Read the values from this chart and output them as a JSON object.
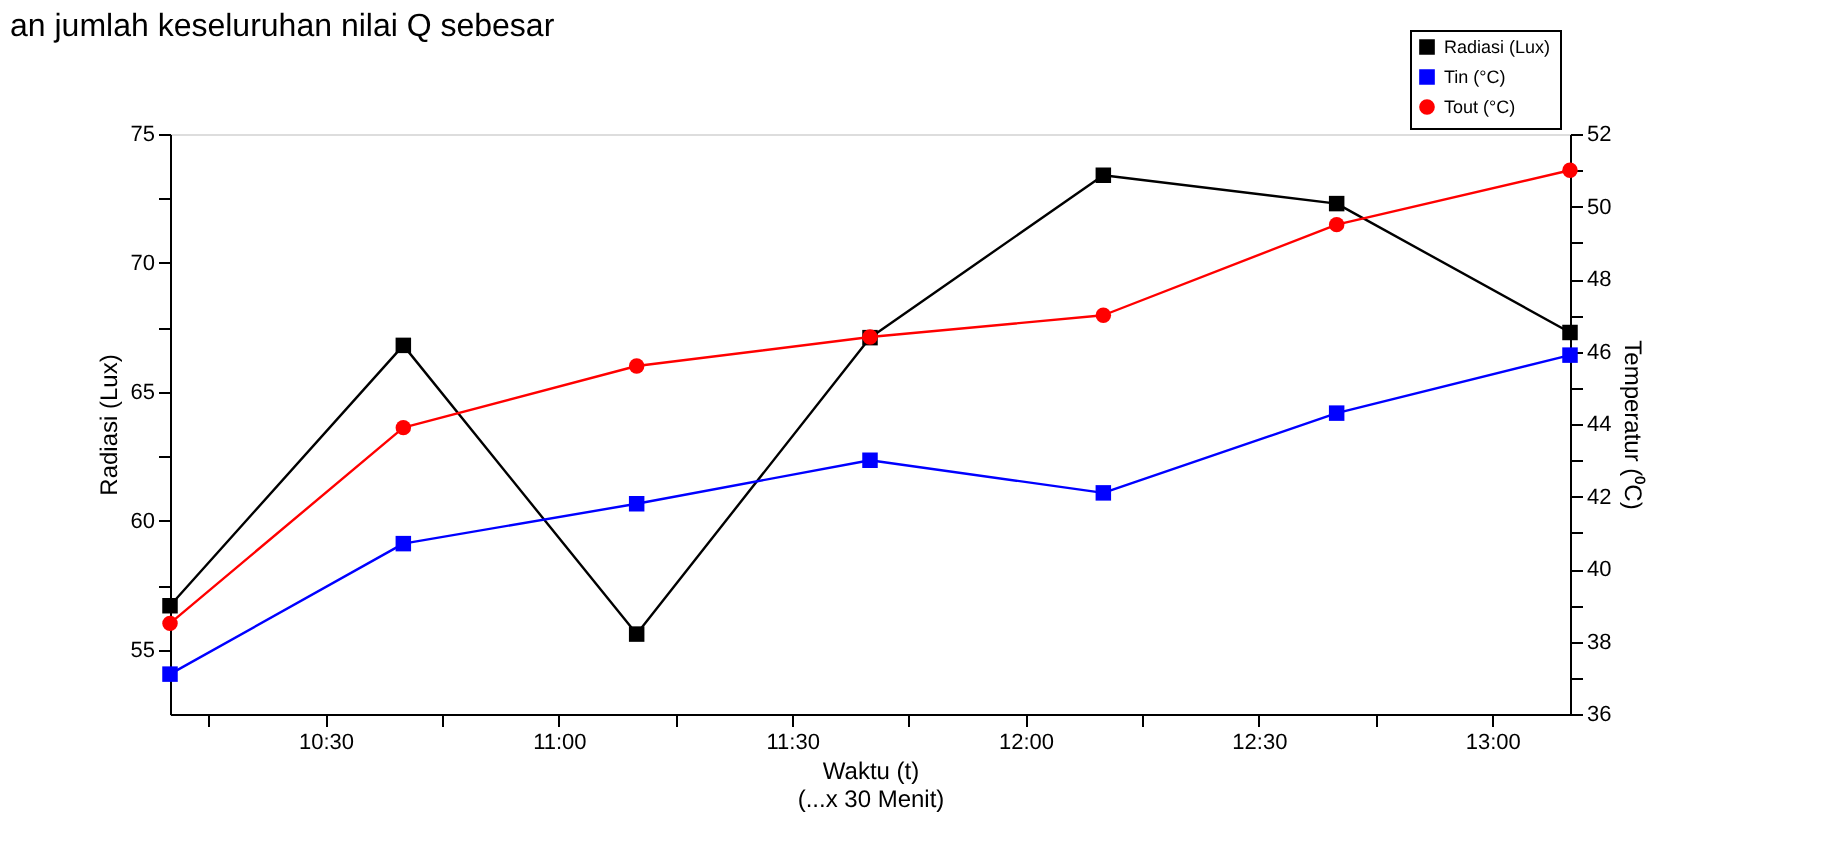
{
  "chart_data": {
    "type": "line",
    "xlabel": "Waktu (t)\n(...x 30 Menit)",
    "ylabel": "Radiasi (Lux)",
    "y2label": "Temperatur (⁰C)",
    "annotations": [
      "an jumlah keseluruhan nilai Q sebesar"
    ],
    "x": [
      10.1667,
      10.6667,
      11.1667,
      11.6667,
      12.1667,
      12.6667,
      13.1667
    ],
    "xlim": [
      10.1667,
      13.1667
    ],
    "xticks": [
      {
        "value": 10.25,
        "label": null
      },
      {
        "value": 10.5,
        "label": "10:30"
      },
      {
        "value": 10.75,
        "label": null
      },
      {
        "value": 11,
        "label": "11:00"
      },
      {
        "value": 11.25,
        "label": null
      },
      {
        "value": 11.5,
        "label": "11:30"
      },
      {
        "value": 11.75,
        "label": null
      },
      {
        "value": 12,
        "label": "12:00"
      },
      {
        "value": 12.25,
        "label": null
      },
      {
        "value": 12.5,
        "label": "12:30"
      },
      {
        "value": 12.75,
        "label": null
      },
      {
        "value": 13,
        "label": "13:00"
      }
    ],
    "ylim": [
      52.5,
      75
    ],
    "yticks": [
      55,
      {
        "value": 57.5,
        "label": null
      },
      60,
      {
        "value": 62.5,
        "label": null
      },
      65,
      {
        "value": 67.5,
        "label": null
      },
      70,
      {
        "value": 72.5,
        "label": null
      },
      75
    ],
    "y2lim": [
      36,
      52
    ],
    "y2ticks": [
      36,
      {
        "value": 37,
        "label": null
      },
      38,
      {
        "value": 39,
        "label": null
      },
      40,
      {
        "value": 41,
        "label": null
      },
      42,
      {
        "value": 43,
        "label": null
      },
      44,
      {
        "value": 45,
        "label": null
      },
      46,
      {
        "value": 47,
        "label": null
      },
      48,
      {
        "value": 49,
        "label": null
      },
      50,
      {
        "value": 51,
        "label": null
      },
      52
    ],
    "grid": false,
    "legend": "top right",
    "line_style": "solid",
    "series": [
      {
        "name": "Radiasi (Lux)",
        "color": "#000000",
        "marker": "square",
        "values": [
          56.7,
          66.8,
          55.6,
          67.1,
          73.4,
          72.3,
          67.3
        ]
      },
      {
        "name": "Tin (°C)",
        "color": "#0000ff",
        "marker": "square",
        "axis": "y2",
        "values": [
          37.1,
          40.7,
          41.8,
          43.0,
          42.1,
          44.3,
          45.9
        ]
      },
      {
        "name": "Tout (°C)",
        "color": "#ff0000",
        "marker": "circle",
        "axis": "y2",
        "values": [
          38.5,
          43.9,
          45.6,
          46.4,
          47.0,
          49.5,
          51.0
        ]
      }
    ]
  }
}
